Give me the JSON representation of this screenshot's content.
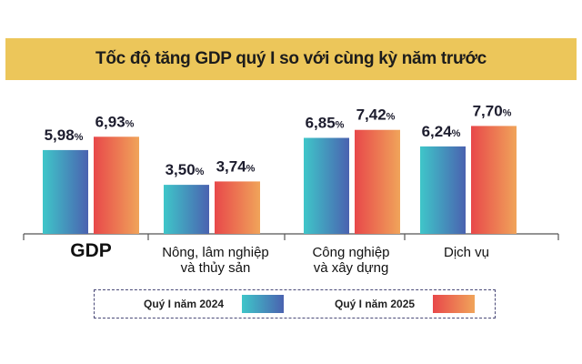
{
  "chart_data": {
    "type": "bar",
    "title": "Tốc độ tăng GDP quý I so với cùng kỳ năm trước",
    "categories": [
      [
        "GDP"
      ],
      [
        "Nông, lâm nghiệp",
        "và thủy sản"
      ],
      [
        "Công nghiệp",
        "và xây dựng"
      ],
      [
        "Dịch vụ"
      ]
    ],
    "series": [
      {
        "name": "Quý I năm 2024",
        "values": [
          5.98,
          3.5,
          6.85,
          6.24
        ],
        "labels": [
          "5,98",
          "3,50",
          "6,85",
          "6,24"
        ],
        "gradient": [
          "#3fc6c9",
          "#4a62b0"
        ]
      },
      {
        "name": "Quý I năm 2025",
        "values": [
          6.93,
          3.74,
          7.42,
          7.7
        ],
        "labels": [
          "6,93",
          "3,74",
          "7,42",
          "7,70"
        ],
        "gradient": [
          "#e8484a",
          "#f0a45a"
        ]
      }
    ],
    "unit": "%",
    "grid": false,
    "legend_position": "bottom"
  }
}
